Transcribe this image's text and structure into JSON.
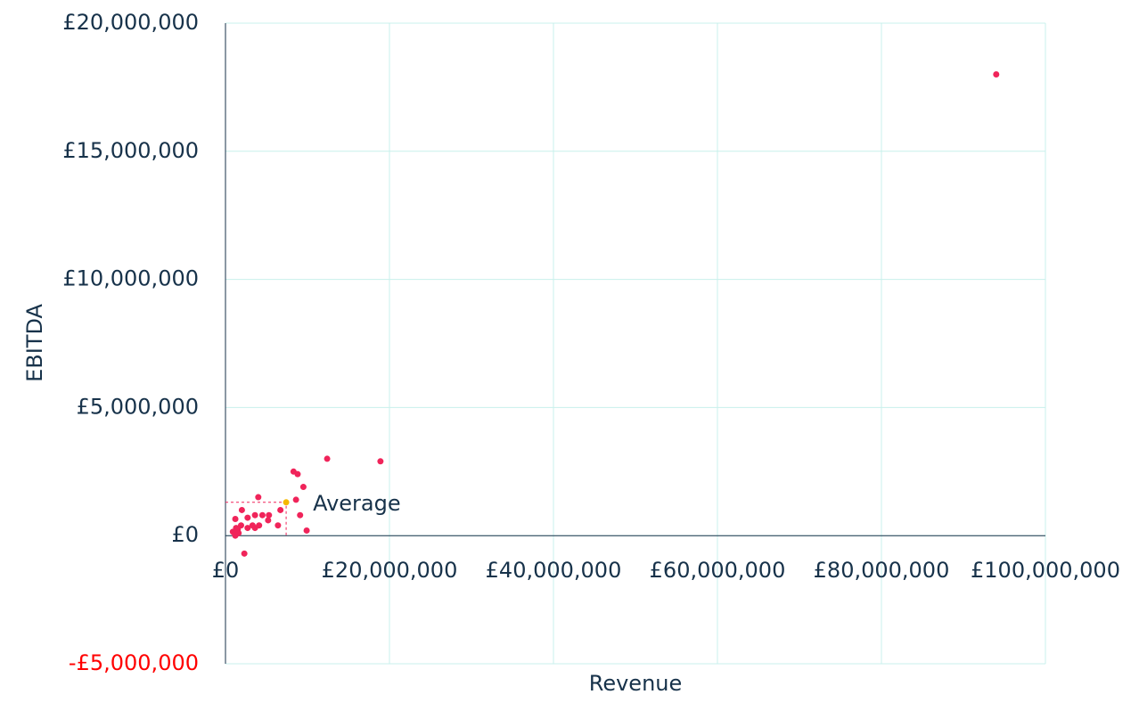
{
  "chart_data": {
    "type": "scatter",
    "xlabel": "Revenue",
    "ylabel": "EBITDA",
    "xlim": [
      0,
      100000000
    ],
    "ylim": [
      -5000000,
      20000000
    ],
    "xticks": [
      {
        "value": 0,
        "label": "£0"
      },
      {
        "value": 20000000,
        "label": "£20,000,000"
      },
      {
        "value": 40000000,
        "label": "£40,000,000"
      },
      {
        "value": 60000000,
        "label": "£60,000,000"
      },
      {
        "value": 80000000,
        "label": "£80,000,000"
      },
      {
        "value": 100000000,
        "label": "£100,000,000"
      }
    ],
    "yticks": [
      {
        "value": -5000000,
        "label": "-£5,000,000"
      },
      {
        "value": 0,
        "label": "£0"
      },
      {
        "value": 5000000,
        "label": "£5,000,000"
      },
      {
        "value": 10000000,
        "label": "£10,000,000"
      },
      {
        "value": 15000000,
        "label": "£15,000,000"
      },
      {
        "value": 20000000,
        "label": "£20,000,000"
      }
    ],
    "grid": true,
    "grid_color": "#c8f0ec",
    "negative_tick_color": "#ff0000",
    "series": [
      {
        "color": "#f0245a",
        "x": [
          94000000,
          12400000,
          18900000,
          8300000,
          8800000,
          9500000,
          4000000,
          8600000,
          6700000,
          2000000,
          9100000,
          5300000,
          3600000,
          4500000,
          2700000,
          1200000,
          5200000,
          6400000,
          3300000,
          4100000,
          3600000,
          1900000,
          2700000,
          1500000,
          900000,
          1300000,
          1100000,
          1200000,
          9900000,
          2300000,
          1600000
        ],
        "values": [
          18000000,
          3000000,
          2900000,
          2500000,
          2400000,
          1900000,
          1500000,
          1400000,
          1000000,
          1000000,
          800000,
          800000,
          800000,
          800000,
          700000,
          650000,
          600000,
          400000,
          400000,
          400000,
          300000,
          400000,
          300000,
          250000,
          150000,
          300000,
          100000,
          0,
          200000,
          -700000,
          100000
        ]
      },
      {
        "name": "Average",
        "color": "#f5b800",
        "x": [
          7400000
        ],
        "values": [
          1300000
        ]
      }
    ]
  }
}
